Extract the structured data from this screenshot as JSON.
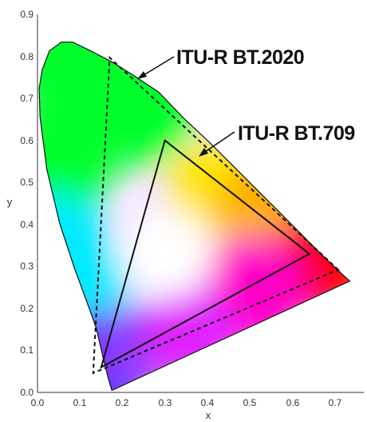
{
  "chart_data": {
    "type": "scatter",
    "title": "",
    "xlabel": "x",
    "ylabel": "y",
    "xlim": [
      0.0,
      0.8
    ],
    "ylim": [
      0.0,
      0.9
    ],
    "x_ticks": [
      "0.0",
      "0.1",
      "0.2",
      "0.3",
      "0.4",
      "0.5",
      "0.6",
      "0.7"
    ],
    "y_ticks": [
      "0.0",
      "0.1",
      "0.2",
      "0.3",
      "0.4",
      "0.5",
      "0.6",
      "0.7",
      "0.8",
      "0.9"
    ],
    "grid": false,
    "spectral_locus": {
      "x": [
        0.175,
        0.172,
        0.166,
        0.155,
        0.138,
        0.115,
        0.087,
        0.052,
        0.022,
        0.006,
        0.004,
        0.011,
        0.028,
        0.056,
        0.083,
        0.125,
        0.171,
        0.226,
        0.285,
        0.345,
        0.405,
        0.462,
        0.515,
        0.563,
        0.605,
        0.64,
        0.672,
        0.7,
        0.72,
        0.735
      ],
      "y": [
        0.005,
        0.015,
        0.036,
        0.081,
        0.154,
        0.219,
        0.296,
        0.403,
        0.531,
        0.656,
        0.724,
        0.768,
        0.813,
        0.834,
        0.834,
        0.813,
        0.789,
        0.755,
        0.715,
        0.652,
        0.595,
        0.538,
        0.484,
        0.436,
        0.393,
        0.357,
        0.325,
        0.298,
        0.279,
        0.265
      ]
    },
    "series": [
      {
        "name": "ITU-R BT.2020",
        "style": "dashed",
        "primaries": {
          "x": [
            0.708,
            0.17,
            0.131
          ],
          "y": [
            0.292,
            0.797,
            0.046
          ]
        }
      },
      {
        "name": "ITU-R BT.709",
        "style": "solid",
        "primaries": {
          "x": [
            0.64,
            0.3,
            0.15
          ],
          "y": [
            0.33,
            0.6,
            0.06
          ]
        }
      }
    ],
    "white_point": {
      "x": 0.3127,
      "y": 0.329
    },
    "colors": {
      "red": "#ff0000",
      "green": "#00ff2a",
      "blue": "#2a2aff",
      "cyan": "#00eaff",
      "magenta": "#ff00c8",
      "yellow": "#ffe600",
      "white": "#ffffff"
    }
  }
}
